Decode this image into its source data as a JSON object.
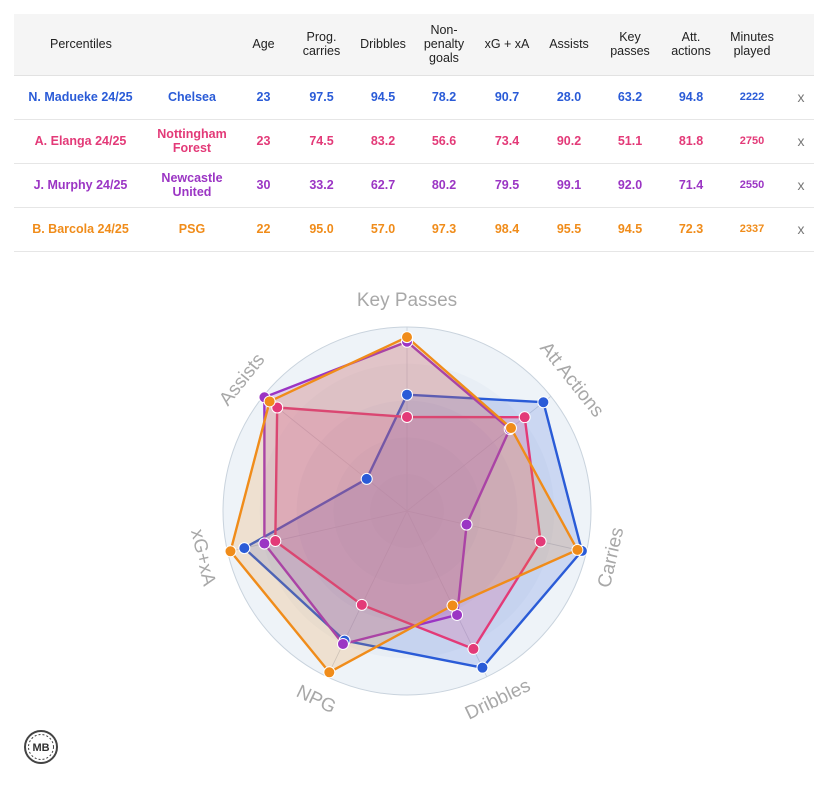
{
  "table": {
    "headers": [
      "Percentiles",
      "",
      "Age",
      "Prog.\ncarries",
      "Dribbles",
      "Non-\npenalty\ngoals",
      "xG + xA",
      "Assists",
      "Key\npasses",
      "Att.\nactions",
      "Minutes\nplayed",
      ""
    ],
    "remove_label": "x",
    "rows": [
      {
        "player": "N. Madueke 24/25",
        "club": "Chelsea",
        "age": "23",
        "prog_carries": "97.5",
        "dribbles": "94.5",
        "npg": "78.2",
        "xg_xa": "90.7",
        "assists": "28.0",
        "key_passes": "63.2",
        "att_actions": "94.8",
        "minutes": "2222",
        "color": "#2a5bd7"
      },
      {
        "player": "A. Elanga 24/25",
        "club": "Nottingham\nForest",
        "age": "23",
        "prog_carries": "74.5",
        "dribbles": "83.2",
        "npg": "56.6",
        "xg_xa": "73.4",
        "assists": "90.2",
        "key_passes": "51.1",
        "att_actions": "81.8",
        "minutes": "2750",
        "color": "#e33a78"
      },
      {
        "player": "J. Murphy 24/25",
        "club": "Newcastle\nUnited",
        "age": "30",
        "prog_carries": "33.2",
        "dribbles": "62.7",
        "npg": "80.2",
        "xg_xa": "79.5",
        "assists": "99.1",
        "key_passes": "92.0",
        "att_actions": "71.4",
        "minutes": "2550",
        "color": "#9b35c4"
      },
      {
        "player": "B. Barcola 24/25",
        "club": "PSG",
        "age": "22",
        "prog_carries": "95.0",
        "dribbles": "57.0",
        "npg": "97.3",
        "xg_xa": "98.4",
        "assists": "95.5",
        "key_passes": "94.5",
        "att_actions": "72.3",
        "minutes": "2337",
        "color": "#f08c1a"
      }
    ]
  },
  "chart_data": {
    "type": "radar",
    "axes": [
      "Key Passes",
      "Att Actions",
      "Carries",
      "Dribbles",
      "NPG",
      "xG+xA",
      "Assists"
    ],
    "range": [
      0,
      100
    ],
    "series": [
      {
        "name": "N. Madueke 24/25",
        "color": "#2a5bd7",
        "values": [
          63.2,
          94.8,
          97.5,
          94.5,
          78.2,
          90.7,
          28.0
        ]
      },
      {
        "name": "A. Elanga 24/25",
        "color": "#e33a78",
        "values": [
          51.1,
          81.8,
          74.5,
          83.2,
          56.6,
          73.4,
          90.2
        ]
      },
      {
        "name": "J. Murphy 24/25",
        "color": "#9b35c4",
        "values": [
          92.0,
          71.4,
          33.2,
          62.7,
          80.2,
          79.5,
          99.1
        ]
      },
      {
        "name": "B. Barcola 24/25",
        "color": "#f08c1a",
        "values": [
          94.5,
          72.3,
          95.0,
          57.0,
          97.3,
          98.4,
          95.5
        ]
      }
    ]
  },
  "logo": {
    "text": "MB"
  }
}
